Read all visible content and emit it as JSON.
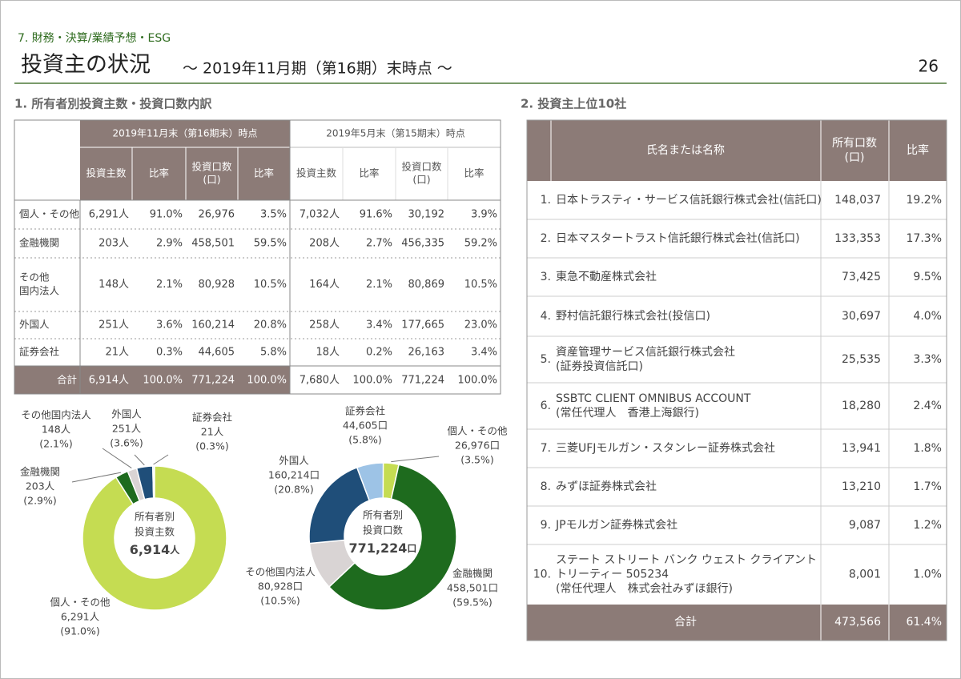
{
  "header": {
    "section": "7. 財務・決算/業績予想・ESG",
    "title": "投資主の状況",
    "subtitle": "～ 2019年11月期（第16期）末時点 ～",
    "page": "26"
  },
  "ownership": {
    "heading": "1. 所有者別投資主数・投資口数内訳",
    "table": {
      "groups": [
        "2019年11月末（第16期末）時点",
        "2019年5月末（第15期末）時点"
      ],
      "columns": [
        [
          "投資主数"
        ],
        [
          "比率"
        ],
        [
          "投資口数",
          "(口)"
        ],
        [
          "比率"
        ],
        [
          "投資主数"
        ],
        [
          "比率"
        ],
        [
          "投資口数",
          "(口)"
        ],
        [
          "比率"
        ]
      ],
      "rows": [
        {
          "label": [
            "個人・その他"
          ],
          "cells": [
            "6,291人",
            "91.0%",
            "26,976",
            "3.5%",
            "7,032人",
            "91.6%",
            "30,192",
            "3.9%"
          ]
        },
        {
          "label": [
            "金融機関"
          ],
          "cells": [
            "203人",
            "2.9%",
            "458,501",
            "59.5%",
            "208人",
            "2.7%",
            "456,335",
            "59.2%"
          ]
        },
        {
          "label": [
            "その他",
            "国内法人"
          ],
          "cells": [
            "148人",
            "2.1%",
            "80,928",
            "10.5%",
            "164人",
            "2.1%",
            "80,869",
            "10.5%"
          ]
        },
        {
          "label": [
            "外国人"
          ],
          "cells": [
            "251人",
            "3.6%",
            "160,214",
            "20.8%",
            "258人",
            "3.4%",
            "177,665",
            "23.0%"
          ]
        },
        {
          "label": [
            "証券会社"
          ],
          "cells": [
            "21人",
            "0.3%",
            "44,605",
            "5.8%",
            "18人",
            "0.2%",
            "26,163",
            "3.4%"
          ]
        }
      ],
      "total": {
        "label": "合計",
        "cells": [
          "6,914人",
          "100.0%",
          "771,224",
          "100.0%",
          "7,680人",
          "100.0%",
          "771,224",
          "100.0%"
        ]
      }
    },
    "charts": [
      {
        "type": "donut",
        "center": [
          "所有者別",
          "投資主数"
        ],
        "total": "6,914",
        "unit": "人",
        "segments": [
          {
            "name": "個人・その他",
            "count": "6,291人",
            "value": 91.0,
            "value_label": "(91.0%)",
            "color": "#c5dc52"
          },
          {
            "name": "金融機関",
            "count": "203人",
            "value": 2.9,
            "value_label": "(2.9%)",
            "color": "#1e6b1e"
          },
          {
            "name": "その他国内法人",
            "count": "148人",
            "value": 2.1,
            "value_label": "(2.1%)",
            "color": "#d9d4d4"
          },
          {
            "name": "外国人",
            "count": "251人",
            "value": 3.6,
            "value_label": "(3.6%)",
            "color": "#1f4e79"
          },
          {
            "name": "証券会社",
            "count": "21人",
            "value": 0.3,
            "value_label": "(0.3%)",
            "color": "#9dc3e6"
          }
        ]
      },
      {
        "type": "donut",
        "center": [
          "所有者別",
          "投資口数"
        ],
        "total": "771,224",
        "unit": "口",
        "segments": [
          {
            "name": "個人・その他",
            "count": "26,976口",
            "value": 3.5,
            "value_label": "(3.5%)",
            "color": "#c5dc52"
          },
          {
            "name": "金融機関",
            "count": "458,501口",
            "value": 59.5,
            "value_label": "(59.5%)",
            "color": "#1e6b1e"
          },
          {
            "name": "その他国内法人",
            "count": "80,928口",
            "value": 10.5,
            "value_label": "(10.5%)",
            "color": "#d9d4d4"
          },
          {
            "name": "外国人",
            "count": "160,214口",
            "value": 20.8,
            "value_label": "(20.8%)",
            "color": "#1f4e79"
          },
          {
            "name": "証券会社",
            "count": "44,605口",
            "value": 5.8,
            "value_label": "(5.8%)",
            "color": "#9dc3e6"
          }
        ]
      }
    ]
  },
  "top10": {
    "heading": "2. 投資主上位10社",
    "columns": {
      "name": "氏名または名称",
      "units": [
        "所有口数",
        "(口)"
      ],
      "ratio": "比率"
    },
    "rows": [
      {
        "rank": "1.",
        "name": [
          "日本トラスティ・サービス信託銀行株式会社(信託口)"
        ],
        "units": "148,037",
        "ratio": "19.2%"
      },
      {
        "rank": "2.",
        "name": [
          "日本マスタートラスト信託銀行株式会社(信託口)"
        ],
        "units": "133,353",
        "ratio": "17.3%"
      },
      {
        "rank": "3.",
        "name": [
          "東急不動産株式会社"
        ],
        "units": "73,425",
        "ratio": "9.5%"
      },
      {
        "rank": "4.",
        "name": [
          "野村信託銀行株式会社(投信口)"
        ],
        "units": "30,697",
        "ratio": "4.0%"
      },
      {
        "rank": "5.",
        "name": [
          "資産管理サービス信託銀行株式会社",
          "(証券投資信託口)"
        ],
        "units": "25,535",
        "ratio": "3.3%"
      },
      {
        "rank": "6.",
        "name": [
          "SSBTC CLIENT OMNIBUS ACCOUNT",
          "(常任代理人　香港上海銀行)"
        ],
        "units": "18,280",
        "ratio": "2.4%"
      },
      {
        "rank": "7.",
        "name": [
          "三菱UFJモルガン・スタンレー証券株式会社"
        ],
        "units": "13,941",
        "ratio": "1.8%"
      },
      {
        "rank": "8.",
        "name": [
          "みずほ証券株式会社"
        ],
        "units": "13,210",
        "ratio": "1.7%"
      },
      {
        "rank": "9.",
        "name": [
          "JPモルガン証券株式会社"
        ],
        "units": "9,087",
        "ratio": "1.2%"
      },
      {
        "rank": "10.",
        "name": [
          "ステート ストリート バンク ウェスト クライアント",
          "トリーティー 505234",
          "(常任代理人　株式会社みずほ銀行)"
        ],
        "units": "8,001",
        "ratio": "1.0%"
      }
    ],
    "total": {
      "label": "合計",
      "units": "473,566",
      "ratio": "61.4%"
    }
  }
}
